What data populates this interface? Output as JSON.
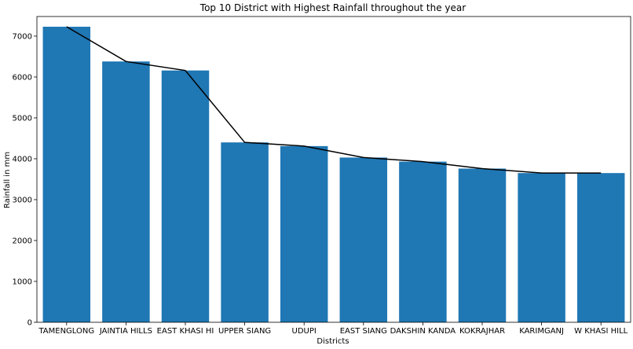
{
  "chart_data": {
    "type": "bar",
    "title": "Top 10 District with Highest Rainfall throughout the year",
    "xlabel": "Districts",
    "ylabel": "Rainfall in mm",
    "categories": [
      "TAMENGLONG",
      "JAINTIA HILLS",
      "EAST KHASI HI",
      "UPPER SIANG",
      "UDUPI",
      "EAST SIANG",
      "DAKSHIN KANDA",
      "KOKRAJHAR",
      "KARIMGANJ",
      "W KHASI HILL"
    ],
    "values": [
      7230,
      6380,
      6160,
      4400,
      4310,
      4030,
      3930,
      3760,
      3650,
      3650
    ],
    "yticks": [
      0,
      1000,
      2000,
      3000,
      4000,
      5000,
      6000,
      7000
    ],
    "ylim": [
      0,
      7480
    ],
    "grid": false,
    "bar_color": "#1f77b4",
    "line_color": "#000000",
    "overlay": "line"
  }
}
